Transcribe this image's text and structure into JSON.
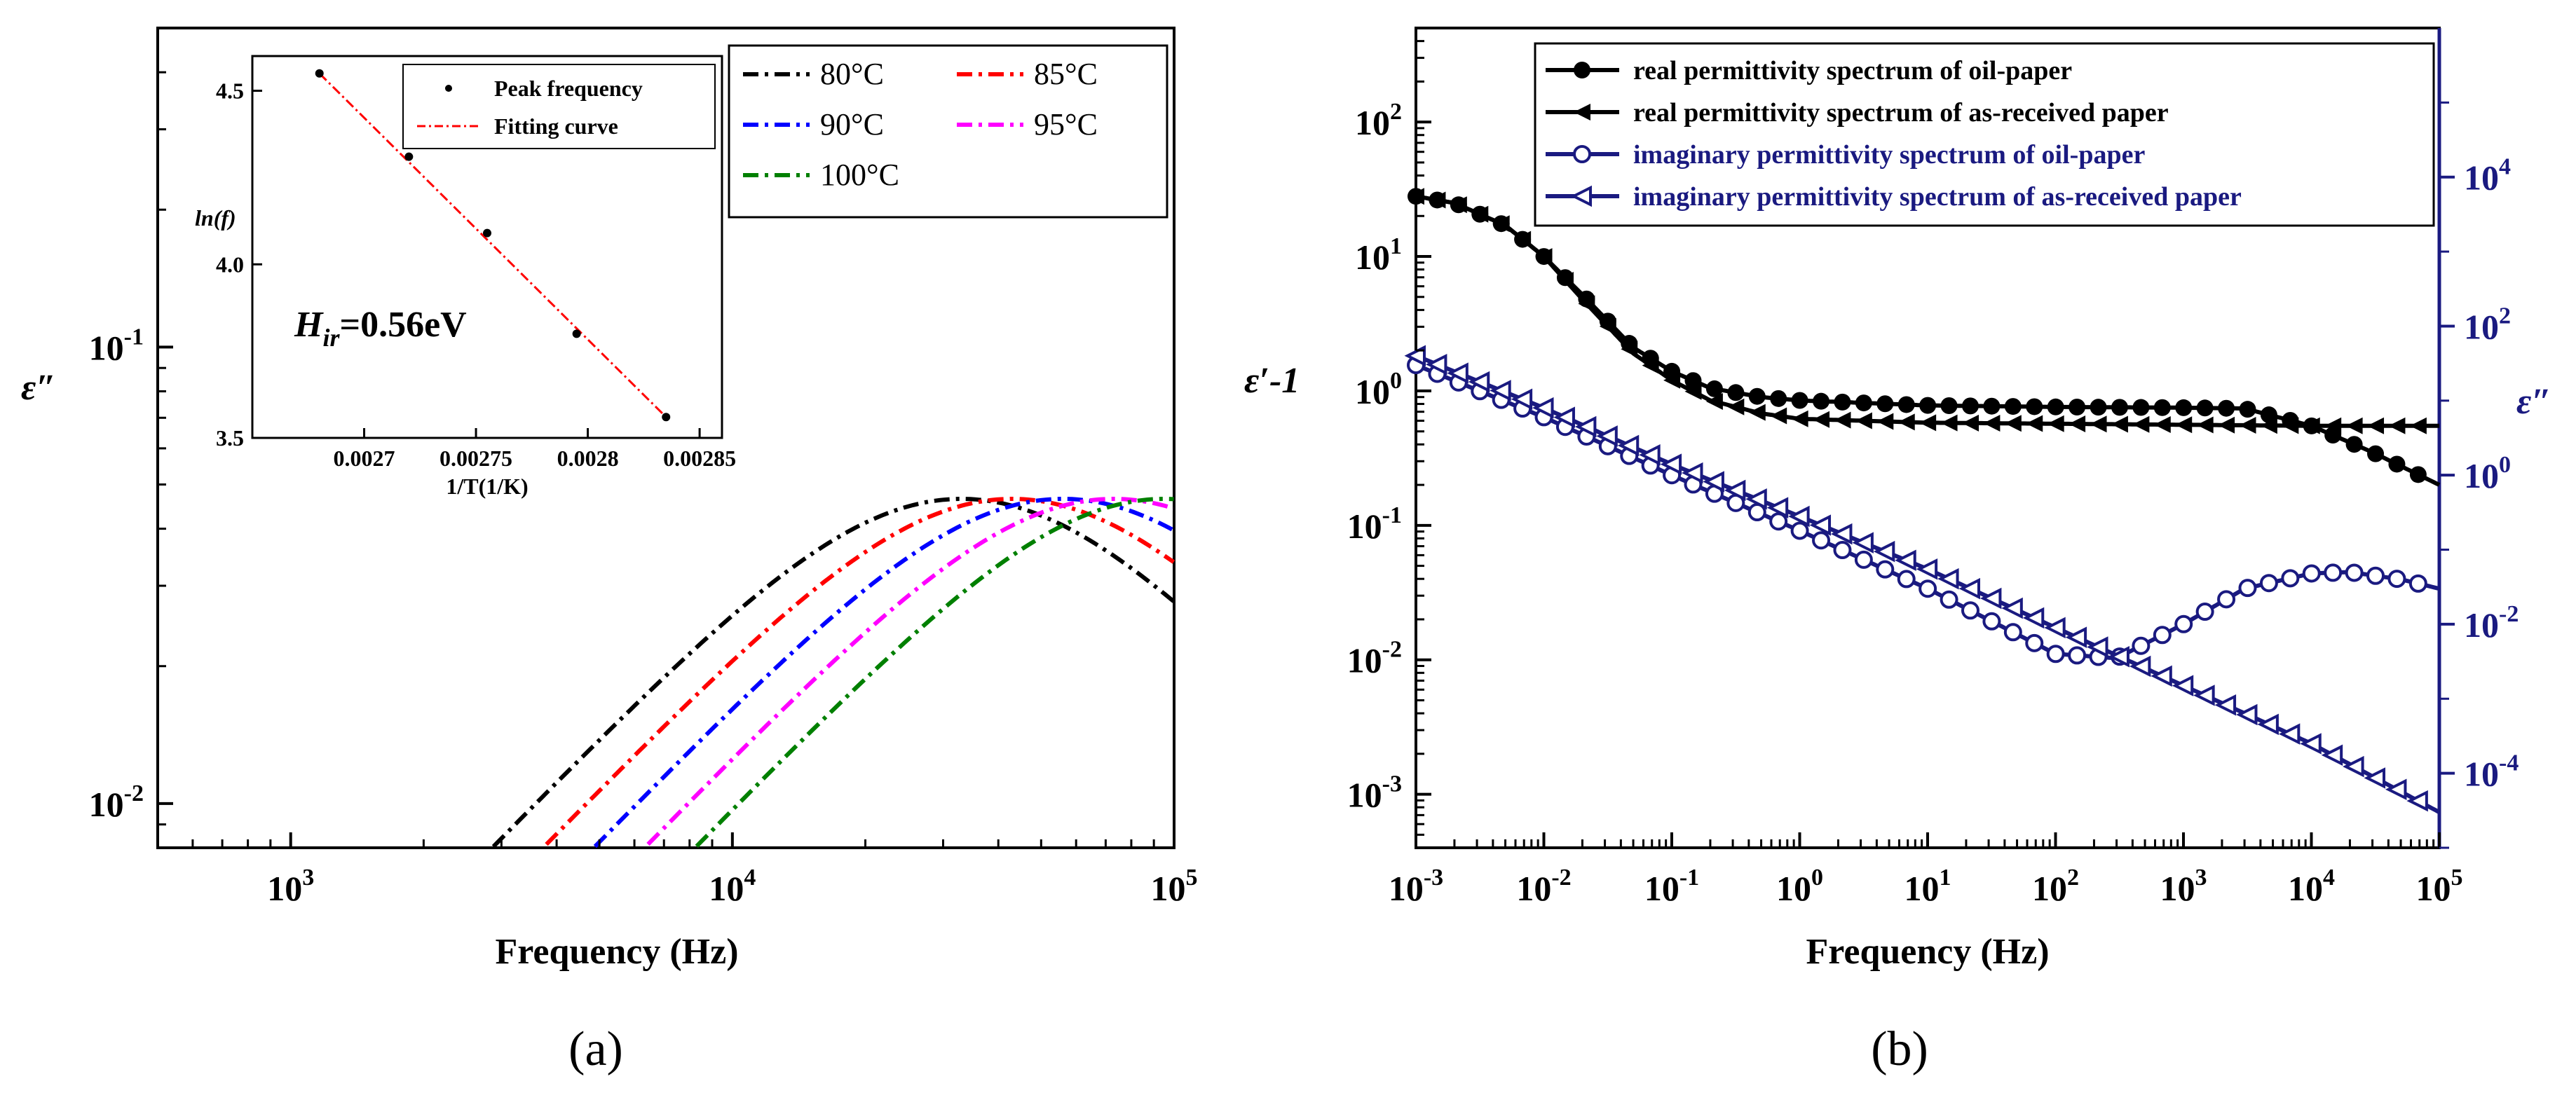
{
  "panel_labels": {
    "a": "(a)",
    "b": "(b)"
  },
  "chart_data": [
    {
      "type": "line",
      "panel": "(a)",
      "xlabel": "Frequency (Hz)",
      "ylabel": "ε″",
      "xscale": "log",
      "yscale": "log",
      "xlim": [
        500,
        100000
      ],
      "ylim": [
        0.008,
        0.5
      ],
      "xticks": [
        1000,
        10000,
        100000
      ],
      "xtick_labels": [
        {
          "base": "10",
          "exp": "3"
        },
        {
          "base": "10",
          "exp": "4"
        },
        {
          "base": "10",
          "exp": "5"
        }
      ],
      "yticks": [
        0.01,
        0.1
      ],
      "ytick_labels": [
        {
          "base": "10",
          "exp": "-2"
        },
        {
          "base": "10",
          "exp": "-1"
        }
      ],
      "legend": [
        "80°C",
        "85°C",
        "90°C",
        "95°C",
        "100°C"
      ],
      "series": [
        {
          "name": "80°C",
          "color": "#000000",
          "peak_freq": 33000,
          "peak_value": 0.0465
        },
        {
          "name": "85°C",
          "color": "#ff0000",
          "peak_freq": 43000,
          "peak_value": 0.0465
        },
        {
          "name": "90°C",
          "color": "#0000ff",
          "peak_freq": 56000,
          "peak_value": 0.0465
        },
        {
          "name": "95°C",
          "color": "#ff00ff",
          "peak_freq": 73000,
          "peak_value": 0.0465
        },
        {
          "name": "100°C",
          "color": "#008000",
          "peak_freq": 95000,
          "peak_value": 0.0465
        }
      ],
      "inset": {
        "type": "scatter",
        "xlabel": "1/T(1/K)",
        "ylabel": "ln(f)",
        "xlim": [
          0.00265,
          0.00286
        ],
        "ylim": [
          3.5,
          4.6
        ],
        "xticks": [
          0.0027,
          0.00275,
          0.0028,
          0.00285
        ],
        "xtick_labels": [
          "0.0027",
          "0.00275",
          "0.0028",
          "0.00285"
        ],
        "yticks": [
          3.5,
          4.0,
          4.5
        ],
        "ytick_labels": [
          "3.5",
          "4.0",
          "4.5"
        ],
        "legend": [
          "Peak frequency",
          "Fitting curve"
        ],
        "points": {
          "x": [
            0.00268,
            0.00272,
            0.002755,
            0.002795,
            0.002835
          ],
          "y": [
            4.55,
            4.31,
            4.09,
            3.8,
            3.56
          ]
        },
        "fit": {
          "x": [
            0.00268,
            0.002835
          ],
          "y": [
            4.55,
            3.56
          ]
        },
        "annotation": {
          "symbol": "H",
          "subscript": "ir",
          "value": "=0.56eV"
        }
      }
    },
    {
      "type": "line",
      "panel": "(b)",
      "xlabel": "Frequency (Hz)",
      "ylabel_left": "ε′-1",
      "ylabel_right": "ε″",
      "xscale": "log",
      "yscale": "log",
      "xlim": [
        0.001,
        100000
      ],
      "ylim_left": [
        0.0004,
        500
      ],
      "ylim_right": [
        1e-05,
        1000000
      ],
      "xticks": [
        0.001,
        0.01,
        0.1,
        1,
        10,
        100,
        1000,
        10000,
        100000
      ],
      "xtick_labels": [
        {
          "base": "10",
          "exp": "-3"
        },
        {
          "base": "10",
          "exp": "-2"
        },
        {
          "base": "10",
          "exp": "-1"
        },
        {
          "base": "10",
          "exp": "0"
        },
        {
          "base": "10",
          "exp": "1"
        },
        {
          "base": "10",
          "exp": "2"
        },
        {
          "base": "10",
          "exp": "3"
        },
        {
          "base": "10",
          "exp": "4"
        },
        {
          "base": "10",
          "exp": "5"
        }
      ],
      "yticks_left": [
        0.001,
        0.01,
        0.1,
        1,
        10,
        100
      ],
      "ytick_labels_left": [
        {
          "base": "10",
          "exp": "-3"
        },
        {
          "base": "10",
          "exp": "-2"
        },
        {
          "base": "10",
          "exp": "-1"
        },
        {
          "base": "10",
          "exp": "0"
        },
        {
          "base": "10",
          "exp": "1"
        },
        {
          "base": "10",
          "exp": "2"
        }
      ],
      "yticks_right": [
        0.0001,
        0.01,
        1,
        100,
        10000
      ],
      "ytick_labels_right": [
        {
          "base": "10",
          "exp": "-4"
        },
        {
          "base": "10",
          "exp": "-2"
        },
        {
          "base": "10",
          "exp": "0"
        },
        {
          "base": "10",
          "exp": "2"
        },
        {
          "base": "10",
          "exp": "4"
        }
      ],
      "legend": [
        "real permittivity spectrum of oil-paper",
        "real permittivity spectrum of as-received paper",
        "imaginary permittivity spectrum of oil-paper",
        "imaginary permittivity spectrum of as-received paper"
      ],
      "series": [
        {
          "name": "real permittivity spectrum of oil-paper",
          "axis": "left",
          "color": "#000000",
          "marker": "filled-circle",
          "x": [
            0.001,
            0.002,
            0.005,
            0.01,
            0.02,
            0.05,
            0.1,
            0.2,
            0.5,
            1,
            10,
            100,
            1000,
            3000,
            10000,
            30000,
            100000
          ],
          "y": [
            28,
            25,
            17,
            10,
            5.2,
            2.1,
            1.4,
            1.05,
            0.9,
            0.85,
            0.78,
            0.76,
            0.75,
            0.74,
            0.55,
            0.35,
            0.2
          ]
        },
        {
          "name": "real permittivity spectrum of as-received paper",
          "axis": "left",
          "color": "#000000",
          "marker": "left-triangle",
          "x": [
            0.001,
            0.002,
            0.005,
            0.01,
            0.02,
            0.05,
            0.1,
            0.2,
            0.5,
            1,
            10,
            100,
            1000,
            10000,
            100000
          ],
          "y": [
            28,
            25,
            17,
            10,
            4.8,
            1.9,
            1.2,
            0.85,
            0.68,
            0.62,
            0.58,
            0.57,
            0.56,
            0.55,
            0.55
          ]
        },
        {
          "name": "imaginary permittivity spectrum of oil-paper",
          "axis": "right",
          "color": "#1a1a80",
          "marker": "open-circle",
          "x": [
            0.001,
            0.01,
            0.1,
            1,
            10,
            100,
            300,
            1000,
            3000,
            10000,
            20000,
            50000,
            100000
          ],
          "y": [
            30,
            6,
            1,
            0.18,
            0.03,
            0.004,
            0.0035,
            0.01,
            0.03,
            0.048,
            0.05,
            0.04,
            0.03
          ]
        },
        {
          "name": "imaginary permittivity spectrum of as-received paper",
          "axis": "right",
          "color": "#1a1a80",
          "marker": "open-left-triangle",
          "x": [
            0.001,
            0.01,
            0.1,
            1,
            10,
            100,
            1000,
            10000,
            100000
          ],
          "y": [
            40,
            8,
            1.4,
            0.28,
            0.055,
            0.009,
            0.0015,
            0.00025,
            3e-05
          ]
        }
      ]
    }
  ]
}
